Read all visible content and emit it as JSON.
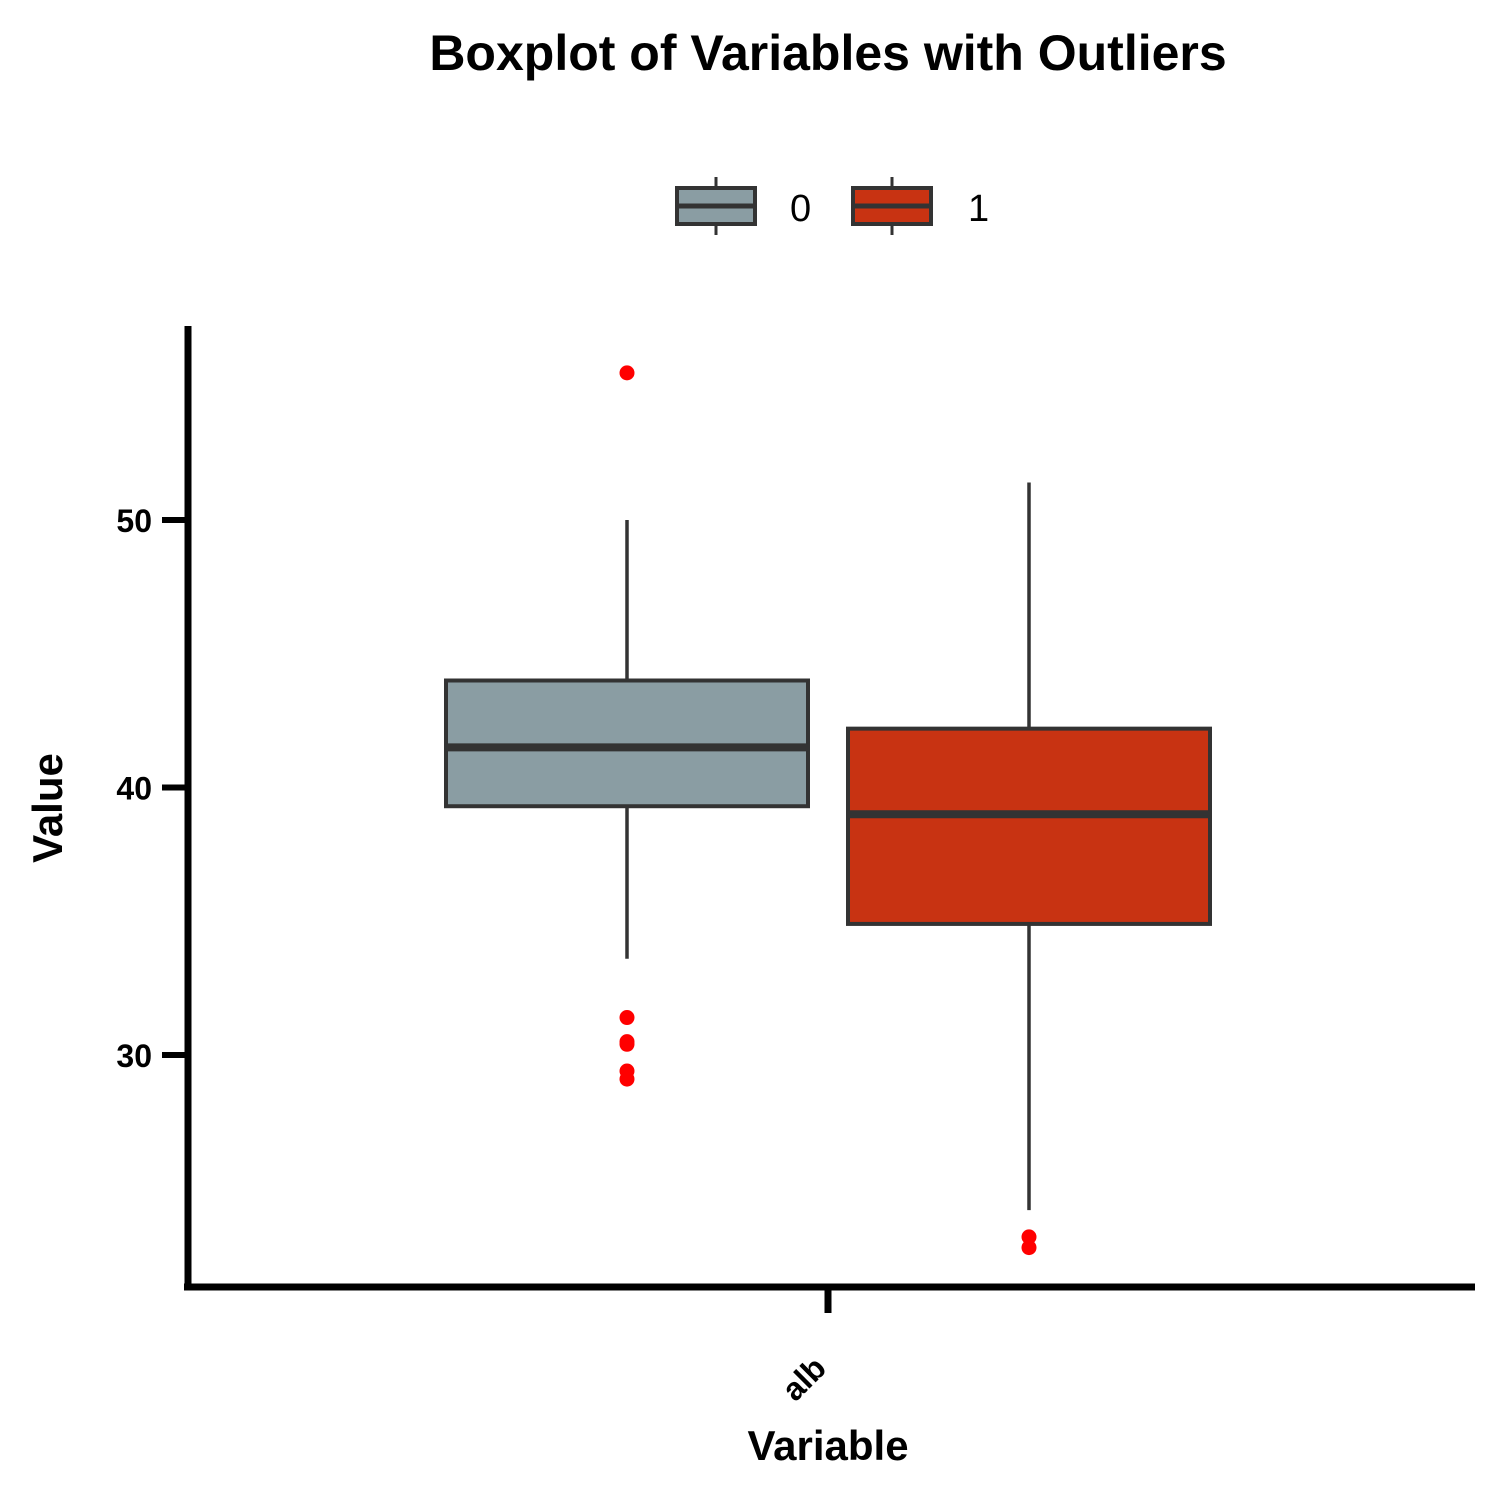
{
  "chart_data": {
    "type": "boxplot",
    "title": "Boxplot of Variables with Outliers",
    "xlabel": "Variable",
    "ylabel": "Value",
    "categories": [
      "alb"
    ],
    "ylim": [
      21.3,
      56.3
    ],
    "yticks": [
      30,
      40,
      50
    ],
    "grid": false,
    "legend": {
      "position": "top",
      "entries": [
        "0",
        "1"
      ]
    },
    "series": [
      {
        "name": "0",
        "color": "#8A9DA3",
        "boxes": [
          {
            "category": "alb",
            "whisker_low": 33.6,
            "q1": 39.3,
            "median": 41.5,
            "q3": 44.0,
            "whisker_high": 50.0,
            "outliers": [
              55.5,
              31.4,
              30.5,
              30.4,
              29.4,
              29.1
            ]
          }
        ]
      },
      {
        "name": "1",
        "color": "#C83312",
        "boxes": [
          {
            "category": "alb",
            "whisker_low": 24.2,
            "q1": 34.9,
            "median": 39.0,
            "q3": 42.2,
            "whisker_high": 51.4,
            "outliers": [
              23.2,
              22.8
            ]
          }
        ]
      }
    ],
    "outlier_color": "#FF0000",
    "line_color": "#333333"
  }
}
